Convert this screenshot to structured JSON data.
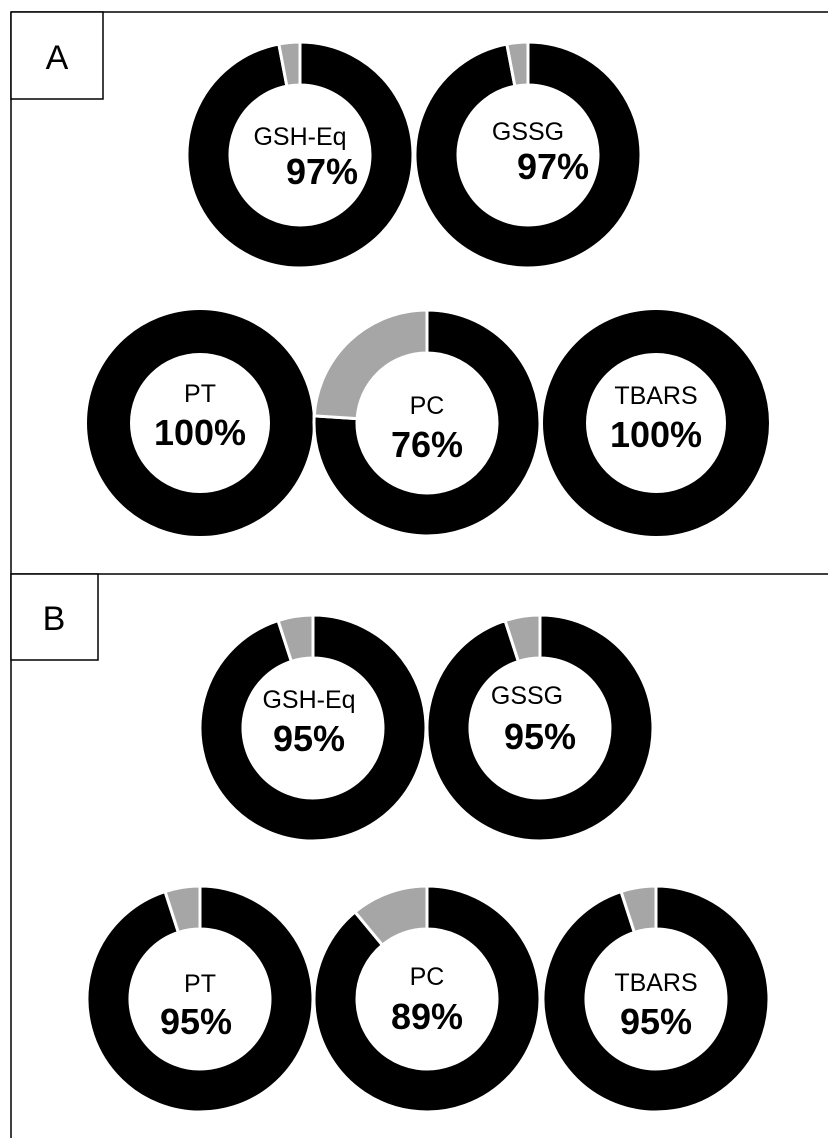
{
  "panels": [
    {
      "label": "A"
    },
    {
      "label": "B"
    }
  ],
  "colors": {
    "primary": "#000000",
    "remainder": "#a6a6a6",
    "separator": "#ffffff",
    "frame": "#000000"
  },
  "chart_data": [
    {
      "type": "pie",
      "panel": "A",
      "label": "GSH-Eq",
      "value_text": "97%",
      "values": [
        97,
        3
      ]
    },
    {
      "type": "pie",
      "panel": "A",
      "label": "GSSG",
      "value_text": "97%",
      "values": [
        97,
        3
      ]
    },
    {
      "type": "pie",
      "panel": "A",
      "label": "PT",
      "value_text": "100%",
      "values": [
        100,
        0
      ]
    },
    {
      "type": "pie",
      "panel": "A",
      "label": "PC",
      "value_text": "76%",
      "values": [
        76,
        24
      ]
    },
    {
      "type": "pie",
      "panel": "A",
      "label": "TBARS",
      "value_text": "100%",
      "values": [
        100,
        0
      ]
    },
    {
      "type": "pie",
      "panel": "B",
      "label": "GSH-Eq",
      "value_text": "95%",
      "values": [
        95,
        5
      ]
    },
    {
      "type": "pie",
      "panel": "B",
      "label": "GSSG",
      "value_text": "95%",
      "values": [
        95,
        5
      ]
    },
    {
      "type": "pie",
      "panel": "B",
      "label": "PT",
      "value_text": "95%",
      "values": [
        95,
        5
      ]
    },
    {
      "type": "pie",
      "panel": "B",
      "label": "PC",
      "value_text": "89%",
      "values": [
        89,
        11
      ]
    },
    {
      "type": "pie",
      "panel": "B",
      "label": "TBARS",
      "value_text": "95%",
      "values": [
        95,
        5
      ]
    }
  ]
}
